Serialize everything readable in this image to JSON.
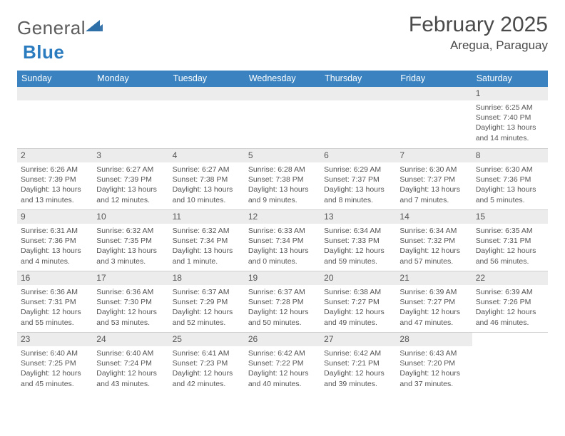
{
  "brand": {
    "word1": "General",
    "word2": "Blue",
    "accent": "#2b7bbf",
    "logo_fill": "#2f6fa8"
  },
  "title": "February 2025",
  "location": "Aregua, Paraguay",
  "header_bg": "#3b83c0",
  "daynum_bg": "#ececec",
  "grid_line": "#cfcfcf",
  "text_color": "#4a4a4a",
  "weekdays": [
    "Sunday",
    "Monday",
    "Tuesday",
    "Wednesday",
    "Thursday",
    "Friday",
    "Saturday"
  ],
  "weeks": [
    [
      null,
      null,
      null,
      null,
      null,
      null,
      {
        "n": "1",
        "sr": "6:25 AM",
        "ss": "7:40 PM",
        "dl": "13 hours and 14 minutes."
      }
    ],
    [
      {
        "n": "2",
        "sr": "6:26 AM",
        "ss": "7:39 PM",
        "dl": "13 hours and 13 minutes."
      },
      {
        "n": "3",
        "sr": "6:27 AM",
        "ss": "7:39 PM",
        "dl": "13 hours and 12 minutes."
      },
      {
        "n": "4",
        "sr": "6:27 AM",
        "ss": "7:38 PM",
        "dl": "13 hours and 10 minutes."
      },
      {
        "n": "5",
        "sr": "6:28 AM",
        "ss": "7:38 PM",
        "dl": "13 hours and 9 minutes."
      },
      {
        "n": "6",
        "sr": "6:29 AM",
        "ss": "7:37 PM",
        "dl": "13 hours and 8 minutes."
      },
      {
        "n": "7",
        "sr": "6:30 AM",
        "ss": "7:37 PM",
        "dl": "13 hours and 7 minutes."
      },
      {
        "n": "8",
        "sr": "6:30 AM",
        "ss": "7:36 PM",
        "dl": "13 hours and 5 minutes."
      }
    ],
    [
      {
        "n": "9",
        "sr": "6:31 AM",
        "ss": "7:36 PM",
        "dl": "13 hours and 4 minutes."
      },
      {
        "n": "10",
        "sr": "6:32 AM",
        "ss": "7:35 PM",
        "dl": "13 hours and 3 minutes."
      },
      {
        "n": "11",
        "sr": "6:32 AM",
        "ss": "7:34 PM",
        "dl": "13 hours and 1 minute."
      },
      {
        "n": "12",
        "sr": "6:33 AM",
        "ss": "7:34 PM",
        "dl": "13 hours and 0 minutes."
      },
      {
        "n": "13",
        "sr": "6:34 AM",
        "ss": "7:33 PM",
        "dl": "12 hours and 59 minutes."
      },
      {
        "n": "14",
        "sr": "6:34 AM",
        "ss": "7:32 PM",
        "dl": "12 hours and 57 minutes."
      },
      {
        "n": "15",
        "sr": "6:35 AM",
        "ss": "7:31 PM",
        "dl": "12 hours and 56 minutes."
      }
    ],
    [
      {
        "n": "16",
        "sr": "6:36 AM",
        "ss": "7:31 PM",
        "dl": "12 hours and 55 minutes."
      },
      {
        "n": "17",
        "sr": "6:36 AM",
        "ss": "7:30 PM",
        "dl": "12 hours and 53 minutes."
      },
      {
        "n": "18",
        "sr": "6:37 AM",
        "ss": "7:29 PM",
        "dl": "12 hours and 52 minutes."
      },
      {
        "n": "19",
        "sr": "6:37 AM",
        "ss": "7:28 PM",
        "dl": "12 hours and 50 minutes."
      },
      {
        "n": "20",
        "sr": "6:38 AM",
        "ss": "7:27 PM",
        "dl": "12 hours and 49 minutes."
      },
      {
        "n": "21",
        "sr": "6:39 AM",
        "ss": "7:27 PM",
        "dl": "12 hours and 47 minutes."
      },
      {
        "n": "22",
        "sr": "6:39 AM",
        "ss": "7:26 PM",
        "dl": "12 hours and 46 minutes."
      }
    ],
    [
      {
        "n": "23",
        "sr": "6:40 AM",
        "ss": "7:25 PM",
        "dl": "12 hours and 45 minutes."
      },
      {
        "n": "24",
        "sr": "6:40 AM",
        "ss": "7:24 PM",
        "dl": "12 hours and 43 minutes."
      },
      {
        "n": "25",
        "sr": "6:41 AM",
        "ss": "7:23 PM",
        "dl": "12 hours and 42 minutes."
      },
      {
        "n": "26",
        "sr": "6:42 AM",
        "ss": "7:22 PM",
        "dl": "12 hours and 40 minutes."
      },
      {
        "n": "27",
        "sr": "6:42 AM",
        "ss": "7:21 PM",
        "dl": "12 hours and 39 minutes."
      },
      {
        "n": "28",
        "sr": "6:43 AM",
        "ss": "7:20 PM",
        "dl": "12 hours and 37 minutes."
      },
      null
    ]
  ],
  "labels": {
    "sunrise": "Sunrise:",
    "sunset": "Sunset:",
    "daylight": "Daylight:"
  }
}
